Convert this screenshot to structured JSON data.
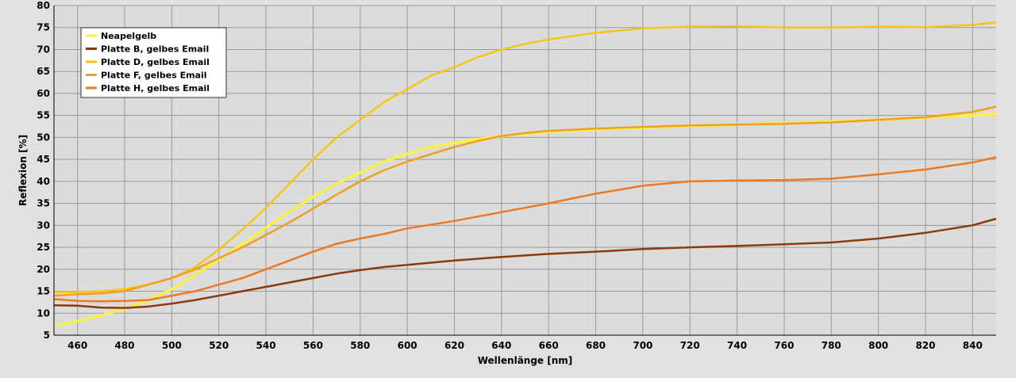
{
  "chart_data": {
    "type": "line",
    "title": "",
    "xlabel": "Wellenlänge [nm]",
    "ylabel": "Reflexion [%]",
    "xlim": [
      450,
      850
    ],
    "ylim": [
      5,
      80
    ],
    "x_ticks": [
      460,
      480,
      500,
      520,
      540,
      560,
      580,
      600,
      620,
      640,
      660,
      680,
      700,
      720,
      740,
      760,
      780,
      800,
      820,
      840
    ],
    "y_ticks": [
      5,
      10,
      15,
      20,
      25,
      30,
      35,
      40,
      45,
      50,
      55,
      60,
      65,
      70,
      75,
      80
    ],
    "grid": true,
    "legend_position": "top-left",
    "series": [
      {
        "name": "Neapelgelb",
        "color": "#f7f04a",
        "x": [
          450,
          460,
          470,
          480,
          490,
          500,
          510,
          520,
          530,
          540,
          550,
          560,
          570,
          580,
          590,
          600,
          610,
          620,
          630,
          640,
          650,
          660,
          680,
          700,
          720,
          740,
          760,
          780,
          800,
          820,
          840,
          850
        ],
        "y": [
          7.2,
          8.2,
          9.5,
          11.0,
          13.0,
          15.5,
          18.8,
          22.2,
          25.8,
          29.5,
          33.2,
          36.5,
          39.5,
          42.0,
          44.5,
          46.3,
          47.8,
          48.8,
          49.6,
          50.3,
          50.8,
          51.3,
          51.8,
          52.2,
          52.6,
          52.9,
          53.3,
          53.6,
          54.0,
          54.5,
          55.0,
          55.3
        ]
      },
      {
        "name": "Platte B, gelbes Email",
        "color": "#8b3a0e",
        "x": [
          450,
          460,
          470,
          480,
          490,
          500,
          510,
          520,
          530,
          540,
          550,
          560,
          570,
          580,
          590,
          600,
          620,
          640,
          660,
          680,
          700,
          720,
          740,
          760,
          780,
          800,
          820,
          840,
          850
        ],
        "y": [
          11.8,
          11.7,
          11.3,
          11.2,
          11.5,
          12.2,
          13.0,
          14.0,
          15.0,
          16.0,
          17.0,
          18.0,
          19.0,
          19.8,
          20.5,
          21.0,
          22.0,
          22.8,
          23.5,
          24.0,
          24.6,
          25.0,
          25.3,
          25.7,
          26.1,
          27.0,
          28.3,
          30.0,
          31.5
        ]
      },
      {
        "name": "Platte D, gelbes Email",
        "color": "#f5c518",
        "x": [
          450,
          460,
          470,
          480,
          490,
          500,
          510,
          520,
          530,
          540,
          550,
          560,
          570,
          580,
          590,
          600,
          610,
          620,
          630,
          640,
          650,
          660,
          680,
          700,
          720,
          740,
          760,
          780,
          800,
          820,
          840,
          850
        ],
        "y": [
          14.8,
          14.8,
          15.0,
          15.5,
          16.5,
          18.0,
          20.5,
          24.5,
          29.0,
          34.0,
          39.5,
          45.0,
          50.0,
          54.0,
          58.0,
          61.0,
          64.0,
          66.0,
          68.3,
          70.0,
          71.3,
          72.3,
          73.8,
          74.8,
          75.2,
          75.3,
          75.0,
          75.0,
          75.2,
          75.1,
          75.6,
          76.2
        ]
      },
      {
        "name": "Platte F, gelbes Email",
        "color": "#f0a020",
        "x": [
          450,
          460,
          470,
          480,
          490,
          500,
          510,
          520,
          530,
          540,
          550,
          560,
          570,
          580,
          590,
          600,
          610,
          620,
          630,
          640,
          650,
          660,
          680,
          700,
          720,
          740,
          760,
          780,
          800,
          820,
          840,
          850
        ],
        "y": [
          14.0,
          14.3,
          14.5,
          15.0,
          16.5,
          18.0,
          20.0,
          22.5,
          25.0,
          27.8,
          30.7,
          33.8,
          37.0,
          40.0,
          42.5,
          44.5,
          46.2,
          47.8,
          49.2,
          50.3,
          51.0,
          51.5,
          52.0,
          52.4,
          52.7,
          52.9,
          53.1,
          53.4,
          54.0,
          54.6,
          55.8,
          57.0
        ]
      },
      {
        "name": "Platte H, gelbes Email",
        "color": "#eb7a24",
        "x": [
          450,
          460,
          470,
          480,
          490,
          500,
          510,
          520,
          530,
          540,
          550,
          560,
          570,
          580,
          590,
          600,
          620,
          640,
          660,
          680,
          700,
          720,
          740,
          760,
          780,
          800,
          820,
          840,
          850
        ],
        "y": [
          13.2,
          12.8,
          12.7,
          12.8,
          13.0,
          14.0,
          15.0,
          16.5,
          18.0,
          20.0,
          22.0,
          24.0,
          25.8,
          27.0,
          28.0,
          29.3,
          31.0,
          33.0,
          35.0,
          37.2,
          39.0,
          40.0,
          40.2,
          40.3,
          40.6,
          41.6,
          42.7,
          44.3,
          45.5
        ]
      }
    ]
  }
}
